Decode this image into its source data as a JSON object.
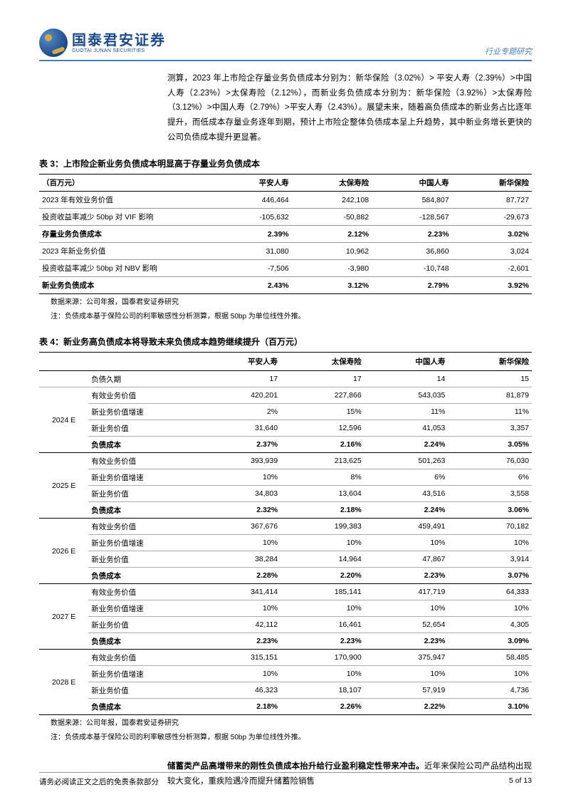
{
  "header": {
    "logo_cn": "国泰君安证券",
    "logo_en": "GUOTAI JUNAN SECURITIES",
    "right_label": "行业专题研究"
  },
  "paragraph1": "测算，2023 年上市险企存量业务负债成本分别为：新华保险（3.02%）> 平安人寿（2.39%）>中国人寿（2.23%）>太保寿险（2.12%），而新业务负债成本分别为：新华保险（3.92%）>太保寿险（3.12%）>中国人寿（2.79%）>平安人寿（2.43%）。展望未来，随着高负债成本的新业务占比逐年提升，而低成本存量业务逐年到期，预计上市险企整体负债成本呈上升趋势，其中新业务增长更快的公司负债成本提升更显著。",
  "table3": {
    "title": "表 3：上市险企新业务负债成本明显高于存量业务负债成本",
    "unit_header": "（百万元）",
    "columns": [
      "平安人寿",
      "太保寿险",
      "中国人寿",
      "新华保险"
    ],
    "rows": [
      {
        "label": "2023 年有效业务价值",
        "vals": [
          "446,464",
          "242,108",
          "584,807",
          "87,727"
        ],
        "bold": false
      },
      {
        "label": "投资收益率减少 50bp 对 VIF 影响",
        "vals": [
          "-105,632",
          "-50,882",
          "-128,567",
          "-29,673"
        ],
        "bold": false
      },
      {
        "label": "存量业务负债成本",
        "vals": [
          "2.39%",
          "2.12%",
          "2.23%",
          "3.02%"
        ],
        "bold": true
      },
      {
        "label": "2023 年新业务价值",
        "vals": [
          "31,080",
          "10,962",
          "36,860",
          "3,024"
        ],
        "bold": false
      },
      {
        "label": "投资收益率减少 50bp 对 NBV 影响",
        "vals": [
          "-7,506",
          "-3,980",
          "-10,748",
          "-2,601"
        ],
        "bold": false
      },
      {
        "label": "新业务负债成本",
        "vals": [
          "2.43%",
          "3.12%",
          "2.79%",
          "3.92%"
        ],
        "bold": true
      }
    ],
    "source": "数据来源：公司年报，国泰君安证券研究",
    "note": "注：负债成本基于保险公司的利率敏感性分析测算，根据 50bp 为单位线性外推。"
  },
  "table4": {
    "title": "表 4：新业务高负债成本将导致未来负债成本趋势继续提升（百万元）",
    "columns": [
      "平安人寿",
      "太保寿险",
      "中国人寿",
      "新华保险"
    ],
    "first_row": {
      "label": "负债久期",
      "vals": [
        "17",
        "17",
        "14",
        "15"
      ]
    },
    "groups": [
      {
        "year": "2024 E",
        "rows": [
          {
            "label": "有效业务价值",
            "vals": [
              "420,201",
              "227,866",
              "543,035",
              "81,879"
            ]
          },
          {
            "label": "新业务价值增速",
            "vals": [
              "2%",
              "15%",
              "11%",
              "11%"
            ]
          },
          {
            "label": "新业务价值",
            "vals": [
              "31,640",
              "12,596",
              "41,053",
              "3,357"
            ]
          },
          {
            "label": "负债成本",
            "vals": [
              "2.37%",
              "2.16%",
              "2.24%",
              "3.05%"
            ],
            "bold": true
          }
        ]
      },
      {
        "year": "2025 E",
        "rows": [
          {
            "label": "有效业务价值",
            "vals": [
              "393,939",
              "213,625",
              "501,263",
              "76,030"
            ]
          },
          {
            "label": "新业务价值增速",
            "vals": [
              "10%",
              "8%",
              "6%",
              "6%"
            ]
          },
          {
            "label": "新业务价值",
            "vals": [
              "34,803",
              "13,604",
              "43,516",
              "3,558"
            ]
          },
          {
            "label": "负债成本",
            "vals": [
              "2.32%",
              "2.18%",
              "2.24%",
              "3.06%"
            ],
            "bold": true
          }
        ]
      },
      {
        "year": "2026 E",
        "rows": [
          {
            "label": "有效业务价值",
            "vals": [
              "367,676",
              "199,383",
              "459,491",
              "70,182"
            ]
          },
          {
            "label": "新业务价值增速",
            "vals": [
              "10%",
              "10%",
              "10%",
              "10%"
            ]
          },
          {
            "label": "新业务价值",
            "vals": [
              "38,284",
              "14,964",
              "47,867",
              "3,914"
            ]
          },
          {
            "label": "负债成本",
            "vals": [
              "2.28%",
              "2.20%",
              "2.23%",
              "3.07%"
            ],
            "bold": true
          }
        ]
      },
      {
        "year": "2027 E",
        "rows": [
          {
            "label": "有效业务价值",
            "vals": [
              "341,414",
              "185,141",
              "417,719",
              "64,333"
            ]
          },
          {
            "label": "新业务价值增速",
            "vals": [
              "10%",
              "10%",
              "10%",
              "10%"
            ]
          },
          {
            "label": "新业务价值",
            "vals": [
              "42,112",
              "16,461",
              "52,654",
              "4,305"
            ]
          },
          {
            "label": "负债成本",
            "vals": [
              "2.23%",
              "2.23%",
              "2.23%",
              "3.09%"
            ],
            "bold": true
          }
        ]
      },
      {
        "year": "2028 E",
        "rows": [
          {
            "label": "有效业务价值",
            "vals": [
              "315,151",
              "170,900",
              "375,947",
              "58,485"
            ]
          },
          {
            "label": "新业务价值增速",
            "vals": [
              "10%",
              "10%",
              "10%",
              "10%"
            ]
          },
          {
            "label": "新业务价值",
            "vals": [
              "46,323",
              "18,107",
              "57,919",
              "4,736"
            ]
          },
          {
            "label": "负债成本",
            "vals": [
              "2.18%",
              "2.26%",
              "2.22%",
              "3.10%"
            ],
            "bold": true
          }
        ]
      }
    ],
    "source": "数据来源：公司年报，国泰君安证券研究",
    "note": "注：负债成本基于保险公司的利率敏感性分析测算，根据 50bp 为单位线性外推。"
  },
  "closing": {
    "bold": "储蓄类产品高增带来的刚性负债成本抬升给行业盈利稳定性带来冲击。",
    "rest": "近年来保险公司产品结构出现较大变化，重疾险遇冷而提升储蓄险销售"
  },
  "footer": {
    "left": "请务必阅读正文之后的免责条款部分",
    "right": "5 of 13"
  }
}
